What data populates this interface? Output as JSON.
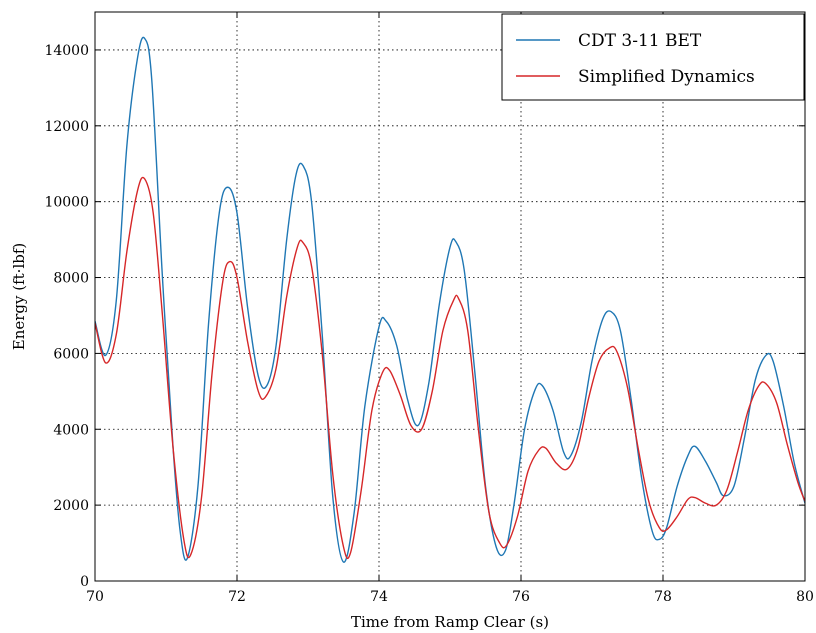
{
  "chart_data": {
    "type": "line",
    "title": "",
    "xlabel": "Time from Ramp Clear (s)",
    "ylabel": "Energy (ft·lbf)",
    "xlim": [
      70,
      80
    ],
    "ylim": [
      0,
      15000
    ],
    "xticks": [
      70,
      72,
      74,
      76,
      78,
      80
    ],
    "yticks": [
      0,
      2000,
      4000,
      6000,
      8000,
      10000,
      12000,
      14000
    ],
    "grid": true,
    "legend_position": "top-right",
    "series": [
      {
        "name": "CDT 3-11 BET",
        "color": "#1f77b4",
        "points": [
          [
            70.0,
            6850
          ],
          [
            70.15,
            5950
          ],
          [
            70.3,
            7400
          ],
          [
            70.45,
            11500
          ],
          [
            70.6,
            13800
          ],
          [
            70.7,
            14300
          ],
          [
            70.8,
            13200
          ],
          [
            70.95,
            8000
          ],
          [
            71.1,
            3500
          ],
          [
            71.2,
            1300
          ],
          [
            71.3,
            600
          ],
          [
            71.45,
            2500
          ],
          [
            71.6,
            6800
          ],
          [
            71.75,
            9700
          ],
          [
            71.87,
            10380
          ],
          [
            72.0,
            9700
          ],
          [
            72.15,
            7200
          ],
          [
            72.3,
            5400
          ],
          [
            72.42,
            5150
          ],
          [
            72.55,
            6200
          ],
          [
            72.7,
            9000
          ],
          [
            72.83,
            10700
          ],
          [
            72.93,
            10950
          ],
          [
            73.05,
            10000
          ],
          [
            73.2,
            6500
          ],
          [
            73.35,
            2200
          ],
          [
            73.5,
            500
          ],
          [
            73.65,
            1800
          ],
          [
            73.8,
            4600
          ],
          [
            74.0,
            6700
          ],
          [
            74.1,
            6850
          ],
          [
            74.25,
            6200
          ],
          [
            74.4,
            4800
          ],
          [
            74.55,
            4100
          ],
          [
            74.7,
            5200
          ],
          [
            74.85,
            7300
          ],
          [
            75.0,
            8800
          ],
          [
            75.08,
            8950
          ],
          [
            75.2,
            8200
          ],
          [
            75.35,
            5500
          ],
          [
            75.5,
            2500
          ],
          [
            75.65,
            900
          ],
          [
            75.78,
            800
          ],
          [
            75.9,
            2000
          ],
          [
            76.05,
            4000
          ],
          [
            76.2,
            5050
          ],
          [
            76.3,
            5150
          ],
          [
            76.45,
            4500
          ],
          [
            76.6,
            3400
          ],
          [
            76.7,
            3300
          ],
          [
            76.85,
            4200
          ],
          [
            77.0,
            5800
          ],
          [
            77.15,
            6900
          ],
          [
            77.27,
            7100
          ],
          [
            77.4,
            6600
          ],
          [
            77.55,
            4800
          ],
          [
            77.7,
            2700
          ],
          [
            77.85,
            1300
          ],
          [
            77.95,
            1100
          ],
          [
            78.05,
            1400
          ],
          [
            78.2,
            2500
          ],
          [
            78.35,
            3300
          ],
          [
            78.45,
            3550
          ],
          [
            78.6,
            3150
          ],
          [
            78.75,
            2600
          ],
          [
            78.85,
            2250
          ],
          [
            79.0,
            2500
          ],
          [
            79.15,
            3800
          ],
          [
            79.3,
            5300
          ],
          [
            79.45,
            5950
          ],
          [
            79.55,
            5800
          ],
          [
            79.7,
            4600
          ],
          [
            79.85,
            3100
          ],
          [
            80.0,
            2050
          ]
        ]
      },
      {
        "name": "Simplified Dynamics",
        "color": "#d62728",
        "points": [
          [
            70.0,
            6800
          ],
          [
            70.15,
            5750
          ],
          [
            70.3,
            6500
          ],
          [
            70.45,
            8700
          ],
          [
            70.6,
            10300
          ],
          [
            70.7,
            10600
          ],
          [
            70.82,
            9700
          ],
          [
            70.95,
            7000
          ],
          [
            71.1,
            3500
          ],
          [
            71.25,
            1100
          ],
          [
            71.35,
            700
          ],
          [
            71.5,
            2200
          ],
          [
            71.65,
            5500
          ],
          [
            71.8,
            7900
          ],
          [
            71.9,
            8420
          ],
          [
            72.0,
            8000
          ],
          [
            72.15,
            6300
          ],
          [
            72.3,
            5000
          ],
          [
            72.4,
            4850
          ],
          [
            72.55,
            5600
          ],
          [
            72.7,
            7500
          ],
          [
            72.85,
            8800
          ],
          [
            72.93,
            8920
          ],
          [
            73.05,
            8300
          ],
          [
            73.2,
            6000
          ],
          [
            73.35,
            2800
          ],
          [
            73.5,
            900
          ],
          [
            73.6,
            750
          ],
          [
            73.75,
            2400
          ],
          [
            73.9,
            4500
          ],
          [
            74.05,
            5500
          ],
          [
            74.15,
            5550
          ],
          [
            74.3,
            4900
          ],
          [
            74.45,
            4100
          ],
          [
            74.6,
            4000
          ],
          [
            74.75,
            5000
          ],
          [
            74.9,
            6600
          ],
          [
            75.05,
            7400
          ],
          [
            75.12,
            7450
          ],
          [
            75.25,
            6600
          ],
          [
            75.4,
            4000
          ],
          [
            75.55,
            1800
          ],
          [
            75.7,
            1000
          ],
          [
            75.8,
            950
          ],
          [
            75.95,
            1700
          ],
          [
            76.1,
            2900
          ],
          [
            76.25,
            3450
          ],
          [
            76.35,
            3500
          ],
          [
            76.5,
            3100
          ],
          [
            76.65,
            2950
          ],
          [
            76.8,
            3500
          ],
          [
            76.95,
            4800
          ],
          [
            77.1,
            5800
          ],
          [
            77.25,
            6150
          ],
          [
            77.35,
            6050
          ],
          [
            77.5,
            5100
          ],
          [
            77.65,
            3500
          ],
          [
            77.8,
            2100
          ],
          [
            77.95,
            1400
          ],
          [
            78.05,
            1350
          ],
          [
            78.2,
            1700
          ],
          [
            78.35,
            2150
          ],
          [
            78.45,
            2200
          ],
          [
            78.6,
            2050
          ],
          [
            78.75,
            2000
          ],
          [
            78.9,
            2400
          ],
          [
            79.05,
            3400
          ],
          [
            79.2,
            4500
          ],
          [
            79.35,
            5150
          ],
          [
            79.45,
            5200
          ],
          [
            79.6,
            4700
          ],
          [
            79.75,
            3600
          ],
          [
            79.9,
            2600
          ],
          [
            80.0,
            2100
          ]
        ]
      }
    ]
  }
}
